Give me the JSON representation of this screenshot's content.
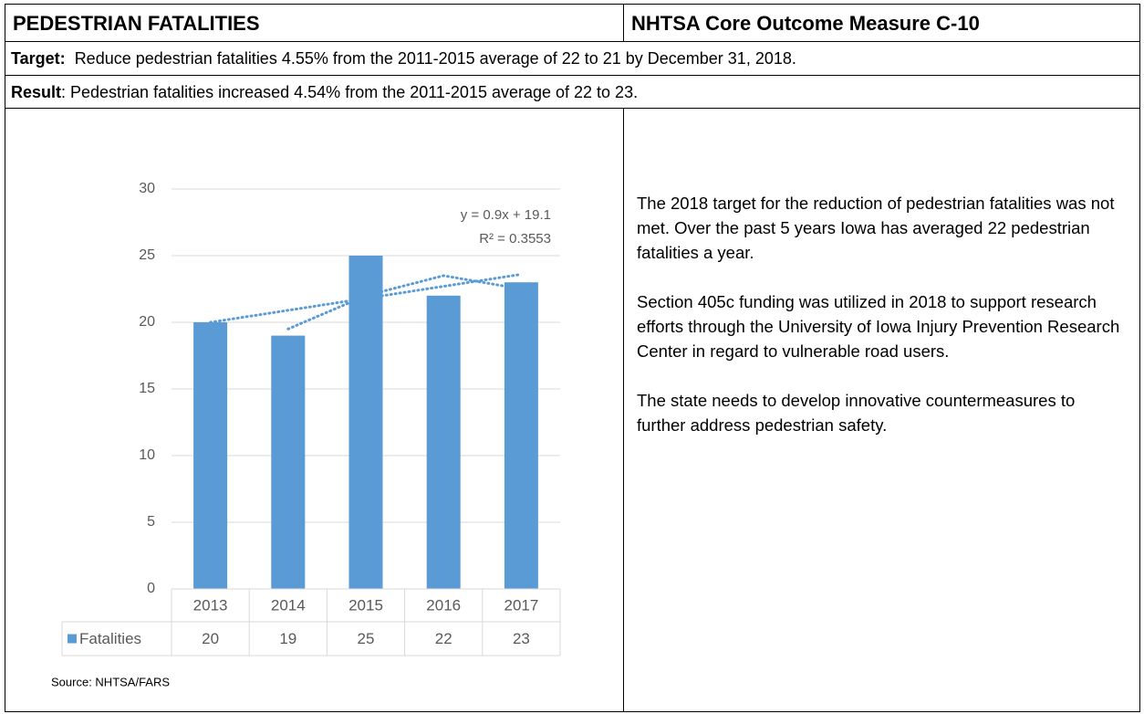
{
  "header": {
    "left": "PEDESTRIAN FATALITIES",
    "right": "NHTSA Core Outcome Measure C-10"
  },
  "target": {
    "label": "Target:",
    "text": "Reduce pedestrian fatalities 4.55% from the 2011-2015 average of 22 to 21 by December 31, 2018."
  },
  "result": {
    "label": "Result",
    "text": ":  Pedestrian fatalities increased 4.54% from the 2011-2015 average of 22 to 23."
  },
  "chart_data": {
    "type": "bar",
    "categories": [
      "2013",
      "2014",
      "2015",
      "2016",
      "2017"
    ],
    "series": [
      {
        "name": "Fatalities",
        "color": "#5b9bd5",
        "values": [
          20,
          19,
          25,
          22,
          23
        ]
      }
    ],
    "ylim": [
      0,
      30
    ],
    "yticks": [
      0,
      5,
      10,
      15,
      20,
      25,
      30
    ],
    "grid": true,
    "trendline": {
      "slope": 0.9,
      "intercept": 19.1,
      "label": "y = 0.9x + 19.1",
      "r2_label": "R² = 0.3553"
    },
    "moving_average_period": 2
  },
  "source": "Source:  NHTSA/FARS",
  "body": {
    "paragraphs": [
      "The 2018 target for the reduction of pedestrian fatalities was not met.  Over the past 5 years Iowa has averaged 22 pedestrian fatalities a year.",
      "Section 405c funding was utilized in 2018 to support research efforts through the University of Iowa Injury Prevention Research Center in regard to vulnerable road users.",
      "The state needs to develop innovative countermeasures to further address pedestrian safety."
    ]
  }
}
